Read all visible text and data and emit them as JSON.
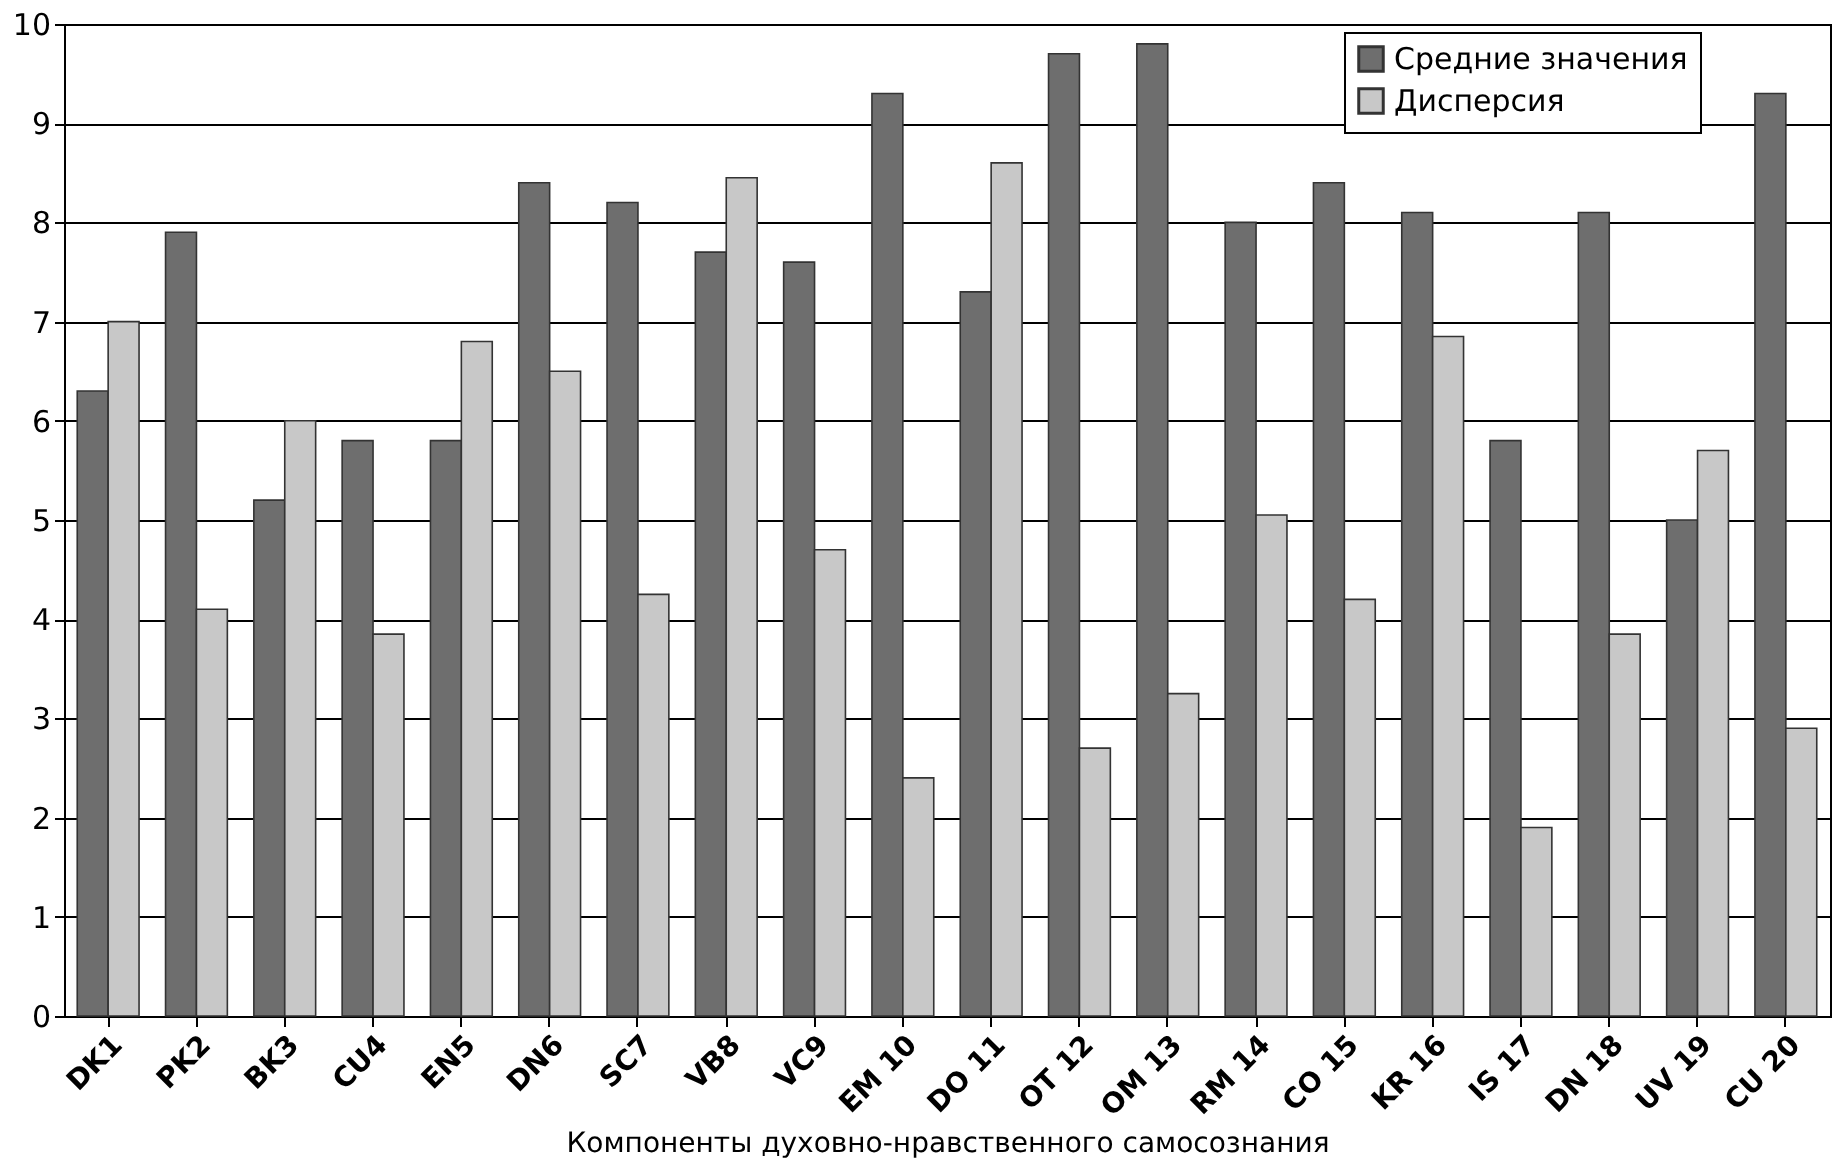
{
  "chart_data": {
    "type": "bar",
    "xlabel": "Компоненты духовно-нравственного самосознания",
    "categories": [
      "DK1",
      "PK2",
      "BK3",
      "CU4",
      "EN5",
      "DN6",
      "SC7",
      "VB8",
      "VC9",
      "EM 10",
      "DO 11",
      "OT 12",
      "OM 13",
      "RM 14",
      "CO 15",
      "KR 16",
      "IS 17",
      "DN 18",
      "UV 19",
      "CU 20"
    ],
    "series": [
      {
        "name": "Средние значения",
        "color": "#6e6e6e",
        "values": [
          6.3,
          7.9,
          5.2,
          5.8,
          5.8,
          8.4,
          8.2,
          7.7,
          7.6,
          9.3,
          7.3,
          9.7,
          9.8,
          8.0,
          8.4,
          8.1,
          5.8,
          8.1,
          5.0,
          9.3
        ]
      },
      {
        "name": "Дисперсия",
        "color": "#c8c8c8",
        "values": [
          7.0,
          4.1,
          6.0,
          3.85,
          6.8,
          6.5,
          4.25,
          8.45,
          4.7,
          2.4,
          8.6,
          2.7,
          3.25,
          5.05,
          4.2,
          6.85,
          1.9,
          3.85,
          5.7,
          2.9
        ]
      }
    ],
    "ylim": [
      0,
      10
    ],
    "yticks": [
      0,
      1,
      2,
      3,
      4,
      5,
      6,
      7,
      8,
      9,
      10
    ],
    "grid": "y",
    "legend": "top right"
  }
}
